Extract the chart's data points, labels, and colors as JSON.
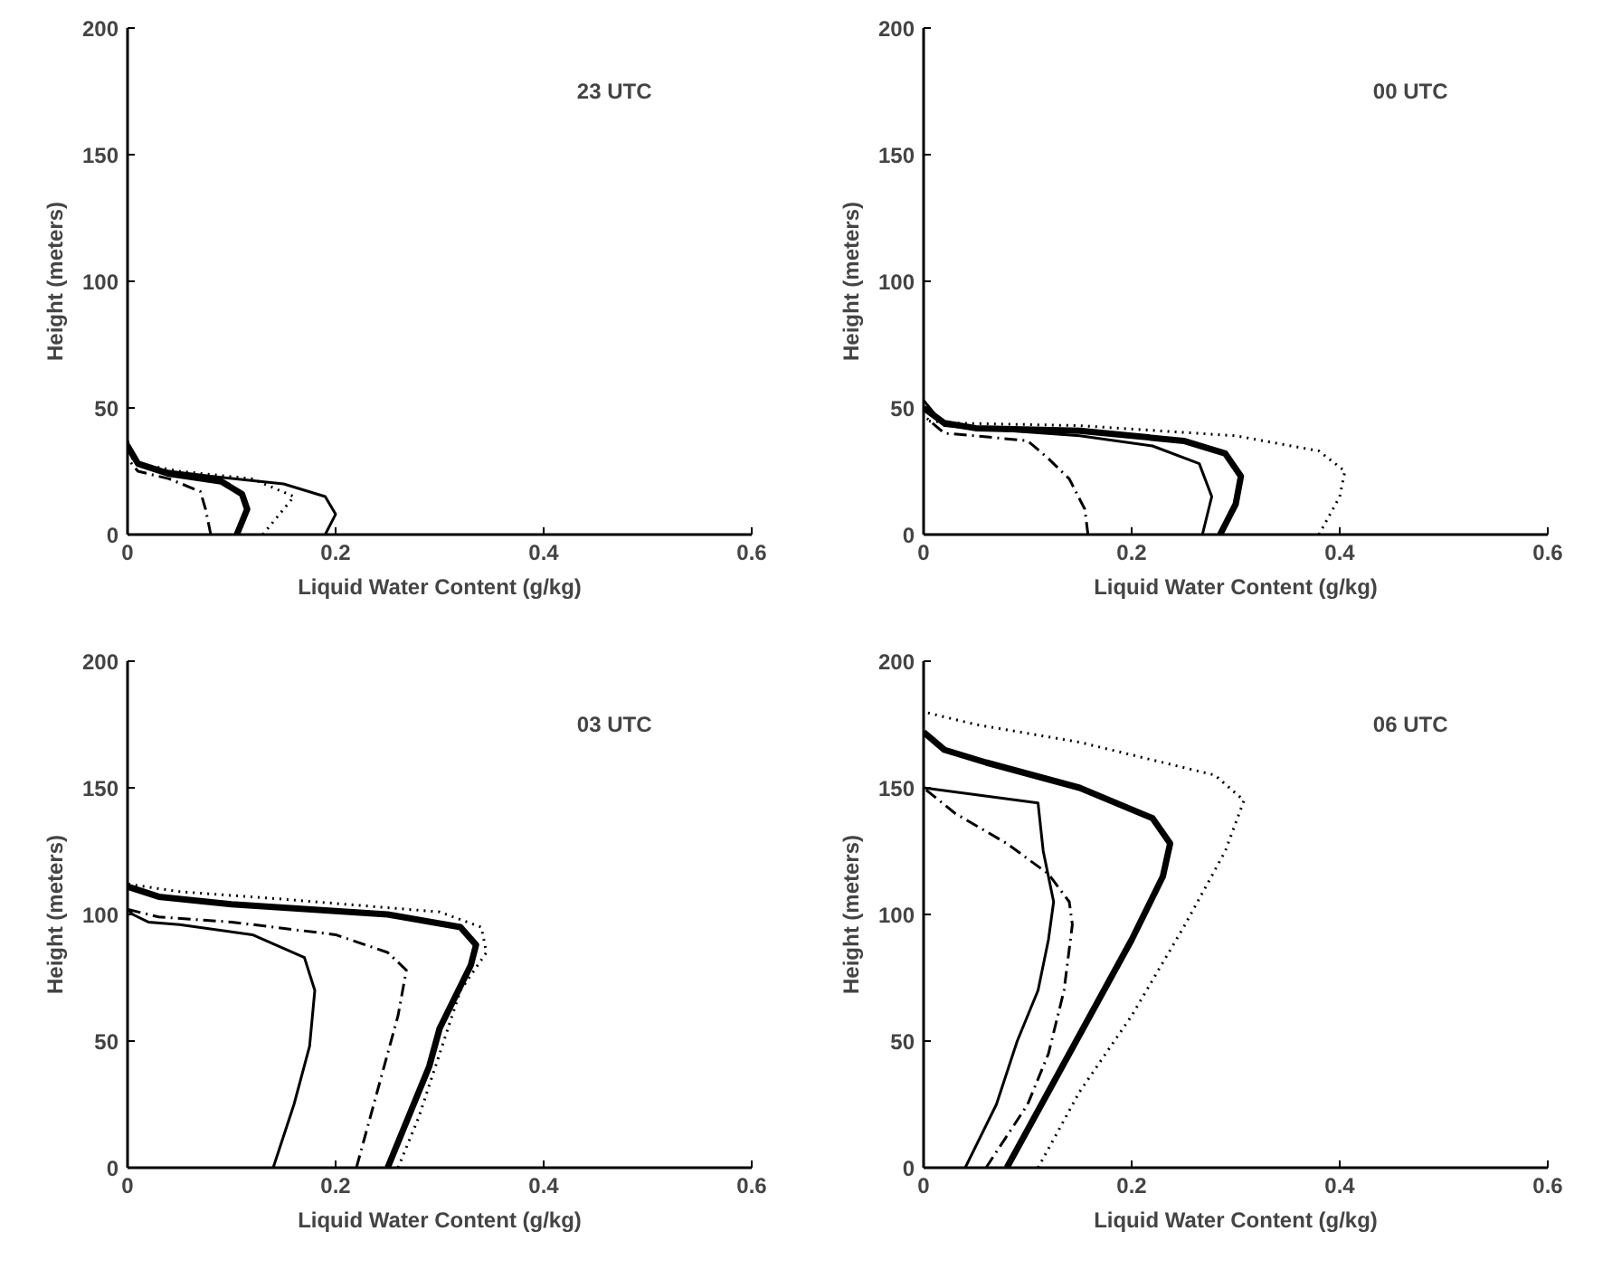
{
  "chart_data": [
    {
      "type": "line",
      "annotations": [
        "23 UTC"
      ],
      "xlabel": "Liquid Water Content (g/kg)",
      "ylabel": "Height (meters)",
      "xlim": [
        0,
        0.6
      ],
      "ylim": [
        0,
        200
      ],
      "xticks": [
        0,
        0.2,
        0.4,
        0.6
      ],
      "yticks": [
        0,
        50,
        100,
        150,
        200
      ],
      "grid": false,
      "series": [
        {
          "color": "#000000",
          "line_style": "solid",
          "x": [
            0.19,
            0.2,
            0.19,
            0.15,
            0.08,
            0.02,
            0.005,
            0
          ],
          "values": [
            0,
            8,
            15,
            20,
            23,
            26,
            30,
            37
          ]
        },
        {
          "color": "#000000",
          "line_style": "solid",
          "x": [
            0.105,
            0.115,
            0.11,
            0.09,
            0.04,
            0.01,
            0
          ],
          "values": [
            0,
            10,
            16,
            21,
            24,
            28,
            35
          ]
        },
        {
          "color": "#000000",
          "line_style": "dashdot",
          "x": [
            0.08,
            0.075,
            0.07,
            0.04,
            0.01,
            0
          ],
          "values": [
            0,
            10,
            17,
            22,
            25,
            30
          ]
        },
        {
          "color": "#000000",
          "line_style": "dotted",
          "x": [
            0.13,
            0.15,
            0.16,
            0.12,
            0.05,
            0.01,
            0
          ],
          "values": [
            0,
            10,
            15,
            22,
            25,
            28,
            32
          ]
        }
      ]
    },
    {
      "type": "line",
      "annotations": [
        "00 UTC"
      ],
      "xlabel": "Liquid Water Content (g/kg)",
      "ylabel": "Height (meters)",
      "xlim": [
        0,
        0.6
      ],
      "ylim": [
        0,
        200
      ],
      "xticks": [
        0,
        0.2,
        0.4,
        0.6
      ],
      "yticks": [
        0,
        50,
        100,
        150,
        200
      ],
      "grid": false,
      "series": [
        {
          "color": "#000000",
          "line_style": "solid",
          "x": [
            0.268,
            0.277,
            0.265,
            0.22,
            0.15,
            0.05,
            0.02,
            0
          ],
          "values": [
            0,
            15,
            28,
            35,
            39,
            42,
            43,
            53
          ]
        },
        {
          "color": "#000000",
          "line_style": "solid",
          "x": [
            0.285,
            0.3,
            0.305,
            0.29,
            0.25,
            0.15,
            0.05,
            0.02,
            0
          ],
          "values": [
            0,
            12,
            23,
            32,
            37,
            41,
            42,
            44,
            50
          ]
        },
        {
          "color": "#000000",
          "line_style": "dashdot",
          "x": [
            0.158,
            0.155,
            0.14,
            0.12,
            0.1,
            0.05,
            0.02,
            0
          ],
          "values": [
            0,
            10,
            22,
            30,
            37,
            39,
            40,
            47
          ]
        },
        {
          "color": "#000000",
          "line_style": "dotted",
          "x": [
            0.38,
            0.4,
            0.405,
            0.38,
            0.3,
            0.15,
            0.03,
            0
          ],
          "values": [
            0,
            15,
            25,
            33,
            39,
            43,
            44,
            45
          ]
        }
      ]
    },
    {
      "type": "line",
      "annotations": [
        "03 UTC"
      ],
      "xlabel": "Liquid Water Content (g/kg)",
      "ylabel": "Height (meters)",
      "xlim": [
        0,
        0.6
      ],
      "ylim": [
        0,
        200
      ],
      "xticks": [
        0,
        0.2,
        0.4,
        0.6
      ],
      "yticks": [
        0,
        50,
        100,
        150,
        200
      ],
      "grid": false,
      "series": [
        {
          "color": "#000000",
          "line_style": "solid",
          "x": [
            0.14,
            0.16,
            0.175,
            0.18,
            0.17,
            0.12,
            0.05,
            0.02,
            0.005,
            0
          ],
          "values": [
            0,
            25,
            48,
            70,
            83,
            92,
            96,
            97,
            100,
            102
          ]
        },
        {
          "color": "#000000",
          "line_style": "solid",
          "x": [
            0.25,
            0.27,
            0.29,
            0.3,
            0.33,
            0.335,
            0.32,
            0.25,
            0.1,
            0.03,
            0
          ],
          "values": [
            0,
            20,
            40,
            55,
            80,
            88,
            95,
            100,
            104,
            107,
            111
          ]
        },
        {
          "color": "#000000",
          "line_style": "dashdot",
          "x": [
            0.22,
            0.24,
            0.26,
            0.268,
            0.25,
            0.2,
            0.1,
            0.03,
            0
          ],
          "values": [
            0,
            30,
            60,
            78,
            85,
            92,
            97,
            99,
            102
          ]
        },
        {
          "color": "#000000",
          "line_style": "dotted",
          "x": [
            0.26,
            0.28,
            0.3,
            0.32,
            0.345,
            0.34,
            0.3,
            0.15,
            0.05,
            0
          ],
          "values": [
            0,
            20,
            45,
            70,
            85,
            95,
            101,
            106,
            109,
            112
          ]
        }
      ]
    },
    {
      "type": "line",
      "annotations": [
        "06 UTC"
      ],
      "xlabel": "Liquid Water Content (g/kg)",
      "ylabel": "Height (meters)",
      "xlim": [
        0,
        0.6
      ],
      "ylim": [
        0,
        200
      ],
      "xticks": [
        0,
        0.2,
        0.4,
        0.6
      ],
      "yticks": [
        0,
        50,
        100,
        150,
        200
      ],
      "grid": false,
      "series": [
        {
          "color": "#000000",
          "line_style": "solid",
          "x": [
            0.04,
            0.07,
            0.09,
            0.11,
            0.12,
            0.125,
            0.115,
            0.11,
            0
          ],
          "values": [
            0,
            25,
            50,
            70,
            90,
            105,
            125,
            144,
            150
          ]
        },
        {
          "color": "#000000",
          "line_style": "solid",
          "x": [
            0.08,
            0.12,
            0.16,
            0.2,
            0.23,
            0.237,
            0.22,
            0.15,
            0.06,
            0.02,
            0
          ],
          "values": [
            0,
            30,
            60,
            90,
            115,
            128,
            138,
            150,
            160,
            165,
            172
          ]
        },
        {
          "color": "#000000",
          "line_style": "dashdot",
          "x": [
            0.06,
            0.1,
            0.12,
            0.135,
            0.143,
            0.14,
            0.12,
            0.08,
            0.03,
            0
          ],
          "values": [
            0,
            25,
            45,
            70,
            96,
            105,
            116,
            128,
            140,
            150
          ]
        },
        {
          "color": "#000000",
          "line_style": "dotted",
          "x": [
            0.11,
            0.15,
            0.2,
            0.25,
            0.29,
            0.308,
            0.28,
            0.15,
            0.05,
            0
          ],
          "values": [
            0,
            30,
            60,
            95,
            125,
            145,
            155,
            168,
            175,
            180
          ]
        }
      ]
    }
  ]
}
